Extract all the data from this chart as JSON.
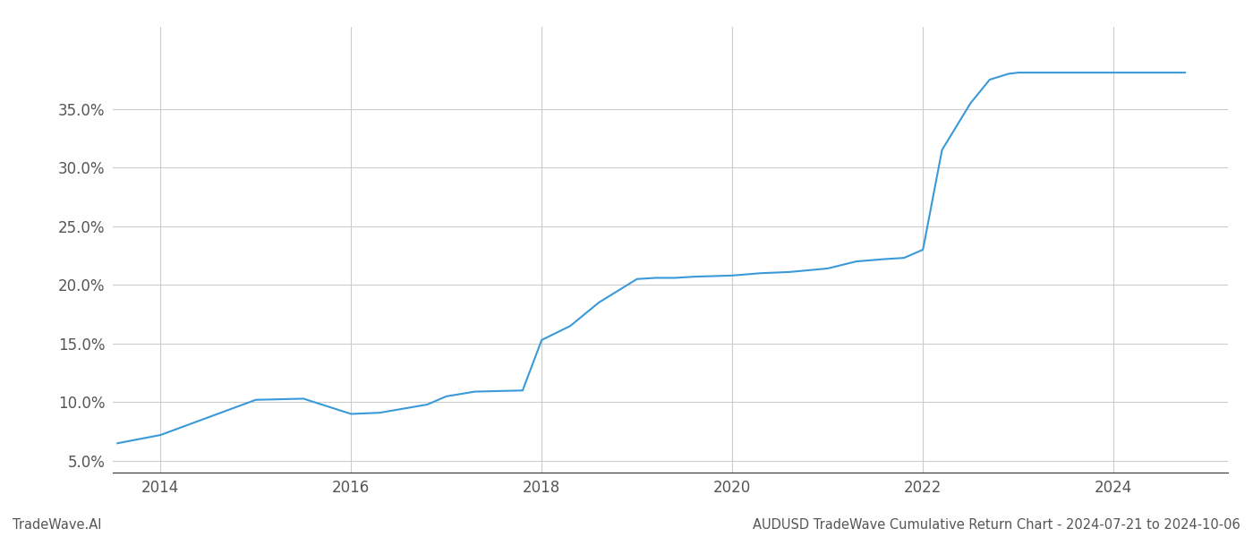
{
  "x_values": [
    2013.55,
    2014.0,
    2014.6,
    2015.0,
    2015.5,
    2016.0,
    2016.3,
    2016.8,
    2017.0,
    2017.3,
    2017.8,
    2018.0,
    2018.3,
    2018.6,
    2018.9,
    2019.0,
    2019.2,
    2019.4,
    2019.6,
    2020.0,
    2020.3,
    2020.6,
    2021.0,
    2021.3,
    2021.6,
    2021.8,
    2022.0,
    2022.2,
    2022.5,
    2022.7,
    2022.9,
    2023.0,
    2023.2,
    2023.4,
    2023.5,
    2023.6,
    2024.0,
    2024.5,
    2024.75
  ],
  "y_values": [
    6.5,
    7.2,
    9.0,
    10.2,
    10.3,
    9.0,
    9.1,
    9.8,
    10.5,
    10.9,
    11.0,
    15.3,
    16.5,
    18.5,
    20.0,
    20.5,
    20.6,
    20.6,
    20.7,
    20.8,
    21.0,
    21.1,
    21.4,
    22.0,
    22.2,
    22.3,
    23.0,
    31.5,
    35.5,
    37.5,
    38.0,
    38.1,
    38.1,
    38.1,
    38.1,
    38.1,
    38.1,
    38.1,
    38.1
  ],
  "line_color": "#3a9ad9",
  "line_width": 1.5,
  "ylim": [
    4.0,
    42.0
  ],
  "xlim": [
    2013.5,
    2025.2
  ],
  "yticks": [
    5.0,
    10.0,
    15.0,
    20.0,
    25.0,
    30.0,
    35.0
  ],
  "xticks": [
    2014,
    2016,
    2018,
    2020,
    2022,
    2024
  ],
  "grid_color": "#cccccc",
  "background_color": "#ffffff",
  "footer_left": "TradeWave.AI",
  "footer_right": "AUDUSD TradeWave Cumulative Return Chart - 2024-07-21 to 2024-10-06",
  "tick_label_color": "#555555",
  "tick_fontsize": 12,
  "footer_fontsize": 10.5
}
